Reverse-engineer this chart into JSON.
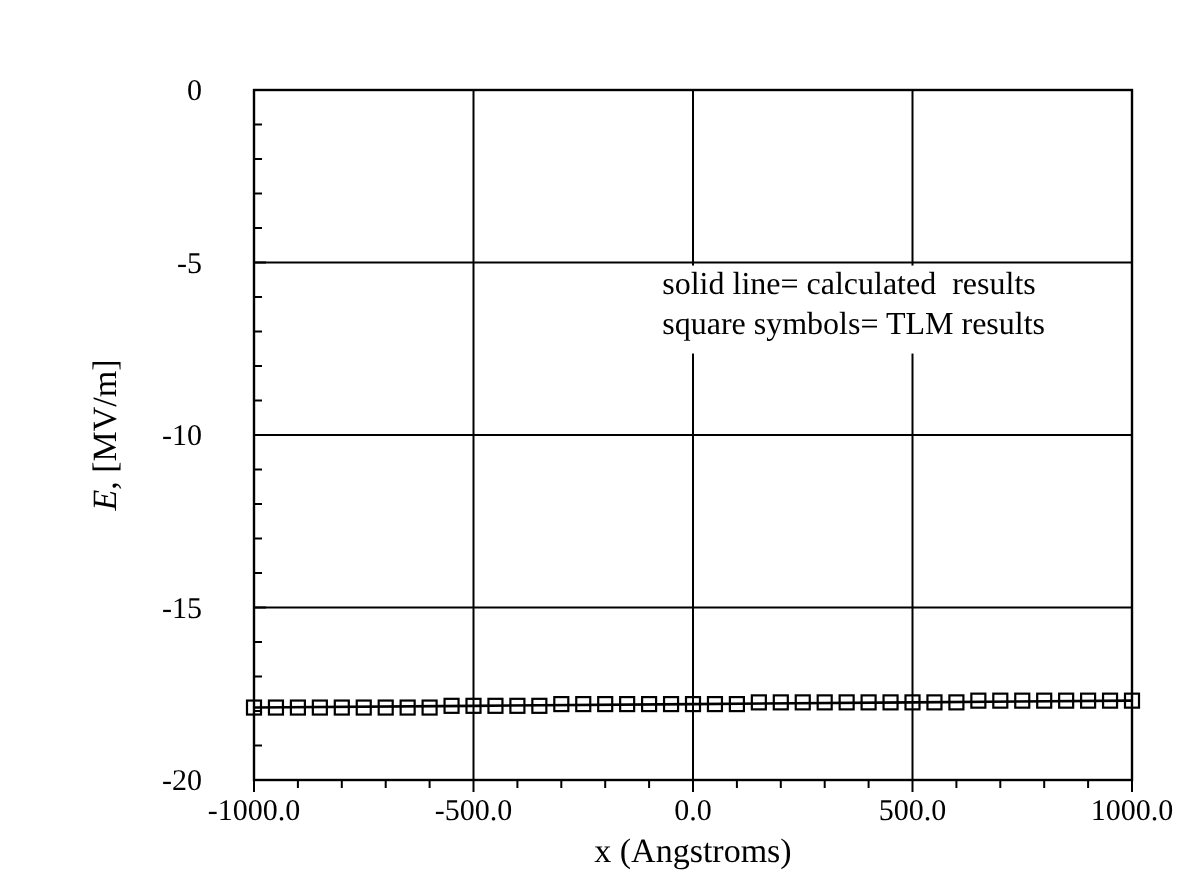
{
  "chart_data": {
    "type": "line",
    "xlabel": "x (Angstroms)",
    "ylabel": "E, [MV/m]",
    "annotations": [
      "solid line= calculated  results",
      "square symbols= TLM results"
    ],
    "xlim": [
      -1000,
      1000
    ],
    "ylim": [
      -20,
      0
    ],
    "xticks": [
      {
        "value": -1000,
        "label": "-1000.0"
      },
      {
        "value": -900,
        "label": null
      },
      {
        "value": -800,
        "label": null
      },
      {
        "value": -700,
        "label": null
      },
      {
        "value": -600,
        "label": null
      },
      {
        "value": -500,
        "label": "-500.0"
      },
      {
        "value": -400,
        "label": null
      },
      {
        "value": -300,
        "label": null
      },
      {
        "value": -200,
        "label": null
      },
      {
        "value": -100,
        "label": null
      },
      {
        "value": 0,
        "label": "0.0"
      },
      {
        "value": 100,
        "label": null
      },
      {
        "value": 200,
        "label": null
      },
      {
        "value": 300,
        "label": null
      },
      {
        "value": 400,
        "label": null
      },
      {
        "value": 500,
        "label": "500.0"
      },
      {
        "value": 600,
        "label": null
      },
      {
        "value": 700,
        "label": null
      },
      {
        "value": 800,
        "label": null
      },
      {
        "value": 900,
        "label": null
      },
      {
        "value": 1000,
        "label": "1000.0"
      }
    ],
    "yticks": [
      -20,
      {
        "value": -19,
        "label": null
      },
      {
        "value": -18,
        "label": null
      },
      {
        "value": -17,
        "label": null
      },
      {
        "value": -16,
        "label": null
      },
      -15,
      {
        "value": -14,
        "label": null
      },
      {
        "value": -13,
        "label": null
      },
      {
        "value": -12,
        "label": null
      },
      {
        "value": -11,
        "label": null
      },
      -10,
      {
        "value": -9,
        "label": null
      },
      {
        "value": -8,
        "label": null
      },
      {
        "value": -7,
        "label": null
      },
      {
        "value": -6,
        "label": null
      },
      -5,
      {
        "value": -4,
        "label": null
      },
      {
        "value": -3,
        "label": null
      },
      {
        "value": -2,
        "label": null
      },
      {
        "value": -1,
        "label": null
      },
      0
    ],
    "grid": true,
    "series": [
      {
        "color": "#000000",
        "line_style": "solid",
        "marker": "none",
        "x": [
          -1000,
          -500,
          0,
          500,
          1000
        ],
        "values": [
          -17.9,
          -17.85,
          -17.8,
          -17.75,
          -17.7
        ]
      },
      {
        "type": "scatter",
        "color": "#000000",
        "marker": "square",
        "x": [
          -1000,
          -950,
          -900,
          -850,
          -800,
          -750,
          -700,
          -650,
          -600,
          -550,
          -500,
          -450,
          -400,
          -350,
          -300,
          -250,
          -200,
          -150,
          -100,
          -50,
          0,
          50,
          100,
          150,
          200,
          250,
          300,
          350,
          400,
          450,
          500,
          550,
          600,
          650,
          700,
          750,
          800,
          850,
          900,
          950,
          1000
        ],
        "values": [
          -17.9,
          -17.9,
          -17.9,
          -17.9,
          -17.9,
          -17.9,
          -17.9,
          -17.9,
          -17.9,
          -17.85,
          -17.85,
          -17.85,
          -17.85,
          -17.85,
          -17.8,
          -17.8,
          -17.8,
          -17.8,
          -17.8,
          -17.8,
          -17.8,
          -17.8,
          -17.8,
          -17.75,
          -17.75,
          -17.75,
          -17.75,
          -17.75,
          -17.75,
          -17.75,
          -17.75,
          -17.75,
          -17.75,
          -17.7,
          -17.7,
          -17.7,
          -17.7,
          -17.7,
          -17.7,
          -17.7,
          -17.7
        ]
      }
    ]
  }
}
